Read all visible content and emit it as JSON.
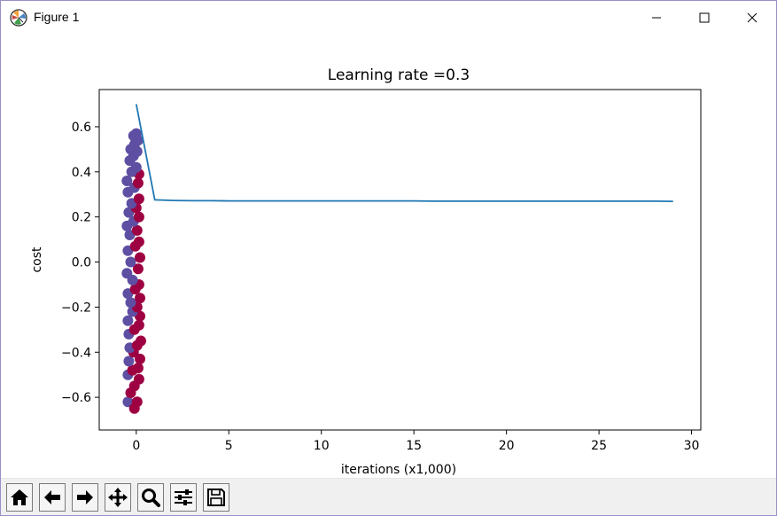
{
  "window": {
    "title": "Figure 1",
    "minimize_glyph": "—",
    "maximize_glyph": "☐",
    "close_glyph": "✕"
  },
  "toolbar": {
    "buttons": [
      {
        "name": "home-button",
        "icon": "home-icon"
      },
      {
        "name": "back-button",
        "icon": "arrow-left-icon"
      },
      {
        "name": "forward-button",
        "icon": "arrow-right-icon"
      },
      {
        "name": "pan-button",
        "icon": "move-icon"
      },
      {
        "name": "zoom-button",
        "icon": "magnifier-icon"
      },
      {
        "name": "subplots-button",
        "icon": "sliders-icon"
      },
      {
        "name": "save-button",
        "icon": "floppy-disk-icon"
      }
    ]
  },
  "chart_data": {
    "type": "line",
    "title": "Learning rate =0.3",
    "xlabel": "iterations (x1,000)",
    "ylabel": "cost",
    "xlim": [
      -2,
      30.5
    ],
    "ylim": [
      -0.745,
      0.765
    ],
    "xticks": [
      0,
      5,
      10,
      15,
      20,
      25,
      30
    ],
    "xtick_labels": [
      "0",
      "5",
      "10",
      "15",
      "20",
      "25",
      "30"
    ],
    "yticks": [
      -0.6,
      -0.4,
      -0.2,
      0.0,
      0.2,
      0.4,
      0.6
    ],
    "ytick_labels": [
      "−0.6",
      "−0.4",
      "−0.2",
      "0.0",
      "0.2",
      "0.4",
      "0.6"
    ],
    "grid": false,
    "line_color": "#1f77b4",
    "series": [
      {
        "x": [
          0,
          1,
          2,
          3,
          4,
          5,
          6,
          7,
          8,
          9,
          10,
          11,
          12,
          13,
          14,
          15,
          16,
          17,
          18,
          19,
          20,
          21,
          22,
          23,
          24,
          25,
          26,
          27,
          28,
          29
        ],
        "values": [
          0.7,
          0.276,
          0.273,
          0.272,
          0.272,
          0.271,
          0.271,
          0.271,
          0.271,
          0.271,
          0.271,
          0.271,
          0.271,
          0.271,
          0.271,
          0.271,
          0.27,
          0.27,
          0.27,
          0.27,
          0.27,
          0.27,
          0.27,
          0.27,
          0.27,
          0.27,
          0.27,
          0.27,
          0.27,
          0.269
        ]
      }
    ],
    "scatter_colors": {
      "class_0": "#9e0142",
      "class_1": "#5e4fa2"
    },
    "scatter_points": [
      {
        "x": -0.45,
        "y": -0.62,
        "c": 1
      },
      {
        "x": -0.1,
        "y": -0.65,
        "c": 0
      },
      {
        "x": 0.05,
        "y": -0.62,
        "c": 0
      },
      {
        "x": -0.3,
        "y": -0.58,
        "c": 0
      },
      {
        "x": -0.1,
        "y": -0.55,
        "c": 0
      },
      {
        "x": 0.15,
        "y": -0.52,
        "c": 0
      },
      {
        "x": -0.45,
        "y": -0.5,
        "c": 1
      },
      {
        "x": -0.2,
        "y": -0.48,
        "c": 0
      },
      {
        "x": 0.1,
        "y": -0.47,
        "c": 0
      },
      {
        "x": -0.4,
        "y": -0.44,
        "c": 1
      },
      {
        "x": 0.2,
        "y": -0.43,
        "c": 0
      },
      {
        "x": -0.15,
        "y": -0.4,
        "c": 0
      },
      {
        "x": -0.35,
        "y": -0.38,
        "c": 1
      },
      {
        "x": 0.05,
        "y": -0.37,
        "c": 0
      },
      {
        "x": 0.25,
        "y": -0.35,
        "c": 0
      },
      {
        "x": -0.4,
        "y": -0.32,
        "c": 1
      },
      {
        "x": -0.1,
        "y": -0.3,
        "c": 0
      },
      {
        "x": 0.15,
        "y": -0.28,
        "c": 0
      },
      {
        "x": -0.45,
        "y": -0.26,
        "c": 1
      },
      {
        "x": 0.2,
        "y": -0.24,
        "c": 0
      },
      {
        "x": -0.2,
        "y": -0.22,
        "c": 1
      },
      {
        "x": 0.05,
        "y": -0.2,
        "c": 0
      },
      {
        "x": -0.3,
        "y": -0.18,
        "c": 1
      },
      {
        "x": 0.2,
        "y": -0.16,
        "c": 0
      },
      {
        "x": -0.45,
        "y": -0.14,
        "c": 1
      },
      {
        "x": -0.05,
        "y": -0.12,
        "c": 0
      },
      {
        "x": 0.15,
        "y": -0.1,
        "c": 0
      },
      {
        "x": -0.2,
        "y": -0.08,
        "c": 1
      },
      {
        "x": -0.5,
        "y": -0.05,
        "c": 1
      },
      {
        "x": 0.1,
        "y": -0.03,
        "c": 0
      },
      {
        "x": -0.3,
        "y": 0.0,
        "c": 1
      },
      {
        "x": 0.2,
        "y": 0.02,
        "c": 0
      },
      {
        "x": -0.45,
        "y": 0.05,
        "c": 1
      },
      {
        "x": -0.05,
        "y": 0.07,
        "c": 0
      },
      {
        "x": 0.15,
        "y": 0.09,
        "c": 0
      },
      {
        "x": -0.35,
        "y": 0.12,
        "c": 1
      },
      {
        "x": 0.05,
        "y": 0.14,
        "c": 0
      },
      {
        "x": -0.5,
        "y": 0.16,
        "c": 1
      },
      {
        "x": -0.15,
        "y": 0.18,
        "c": 1
      },
      {
        "x": 0.15,
        "y": 0.2,
        "c": 0
      },
      {
        "x": -0.4,
        "y": 0.22,
        "c": 1
      },
      {
        "x": 0.0,
        "y": 0.24,
        "c": 0
      },
      {
        "x": -0.25,
        "y": 0.26,
        "c": 1
      },
      {
        "x": 0.15,
        "y": 0.28,
        "c": 0
      },
      {
        "x": -0.45,
        "y": 0.31,
        "c": 1
      },
      {
        "x": -0.1,
        "y": 0.33,
        "c": 1
      },
      {
        "x": 0.1,
        "y": 0.35,
        "c": 0
      },
      {
        "x": -0.5,
        "y": 0.36,
        "c": 1
      },
      {
        "x": 0.15,
        "y": 0.39,
        "c": 0
      },
      {
        "x": -0.25,
        "y": 0.4,
        "c": 1
      },
      {
        "x": 0.0,
        "y": 0.42,
        "c": 1
      },
      {
        "x": -0.35,
        "y": 0.45,
        "c": 1
      },
      {
        "x": -0.15,
        "y": 0.47,
        "c": 1
      },
      {
        "x": 0.05,
        "y": 0.49,
        "c": 1
      },
      {
        "x": -0.1,
        "y": 0.52,
        "c": 1
      },
      {
        "x": -0.05,
        "y": 0.55,
        "c": 1
      },
      {
        "x": 0.0,
        "y": 0.57,
        "c": 1
      },
      {
        "x": -0.15,
        "y": 0.56,
        "c": 1
      },
      {
        "x": 0.1,
        "y": 0.54,
        "c": 1
      },
      {
        "x": -0.3,
        "y": 0.5,
        "c": 1
      }
    ]
  }
}
